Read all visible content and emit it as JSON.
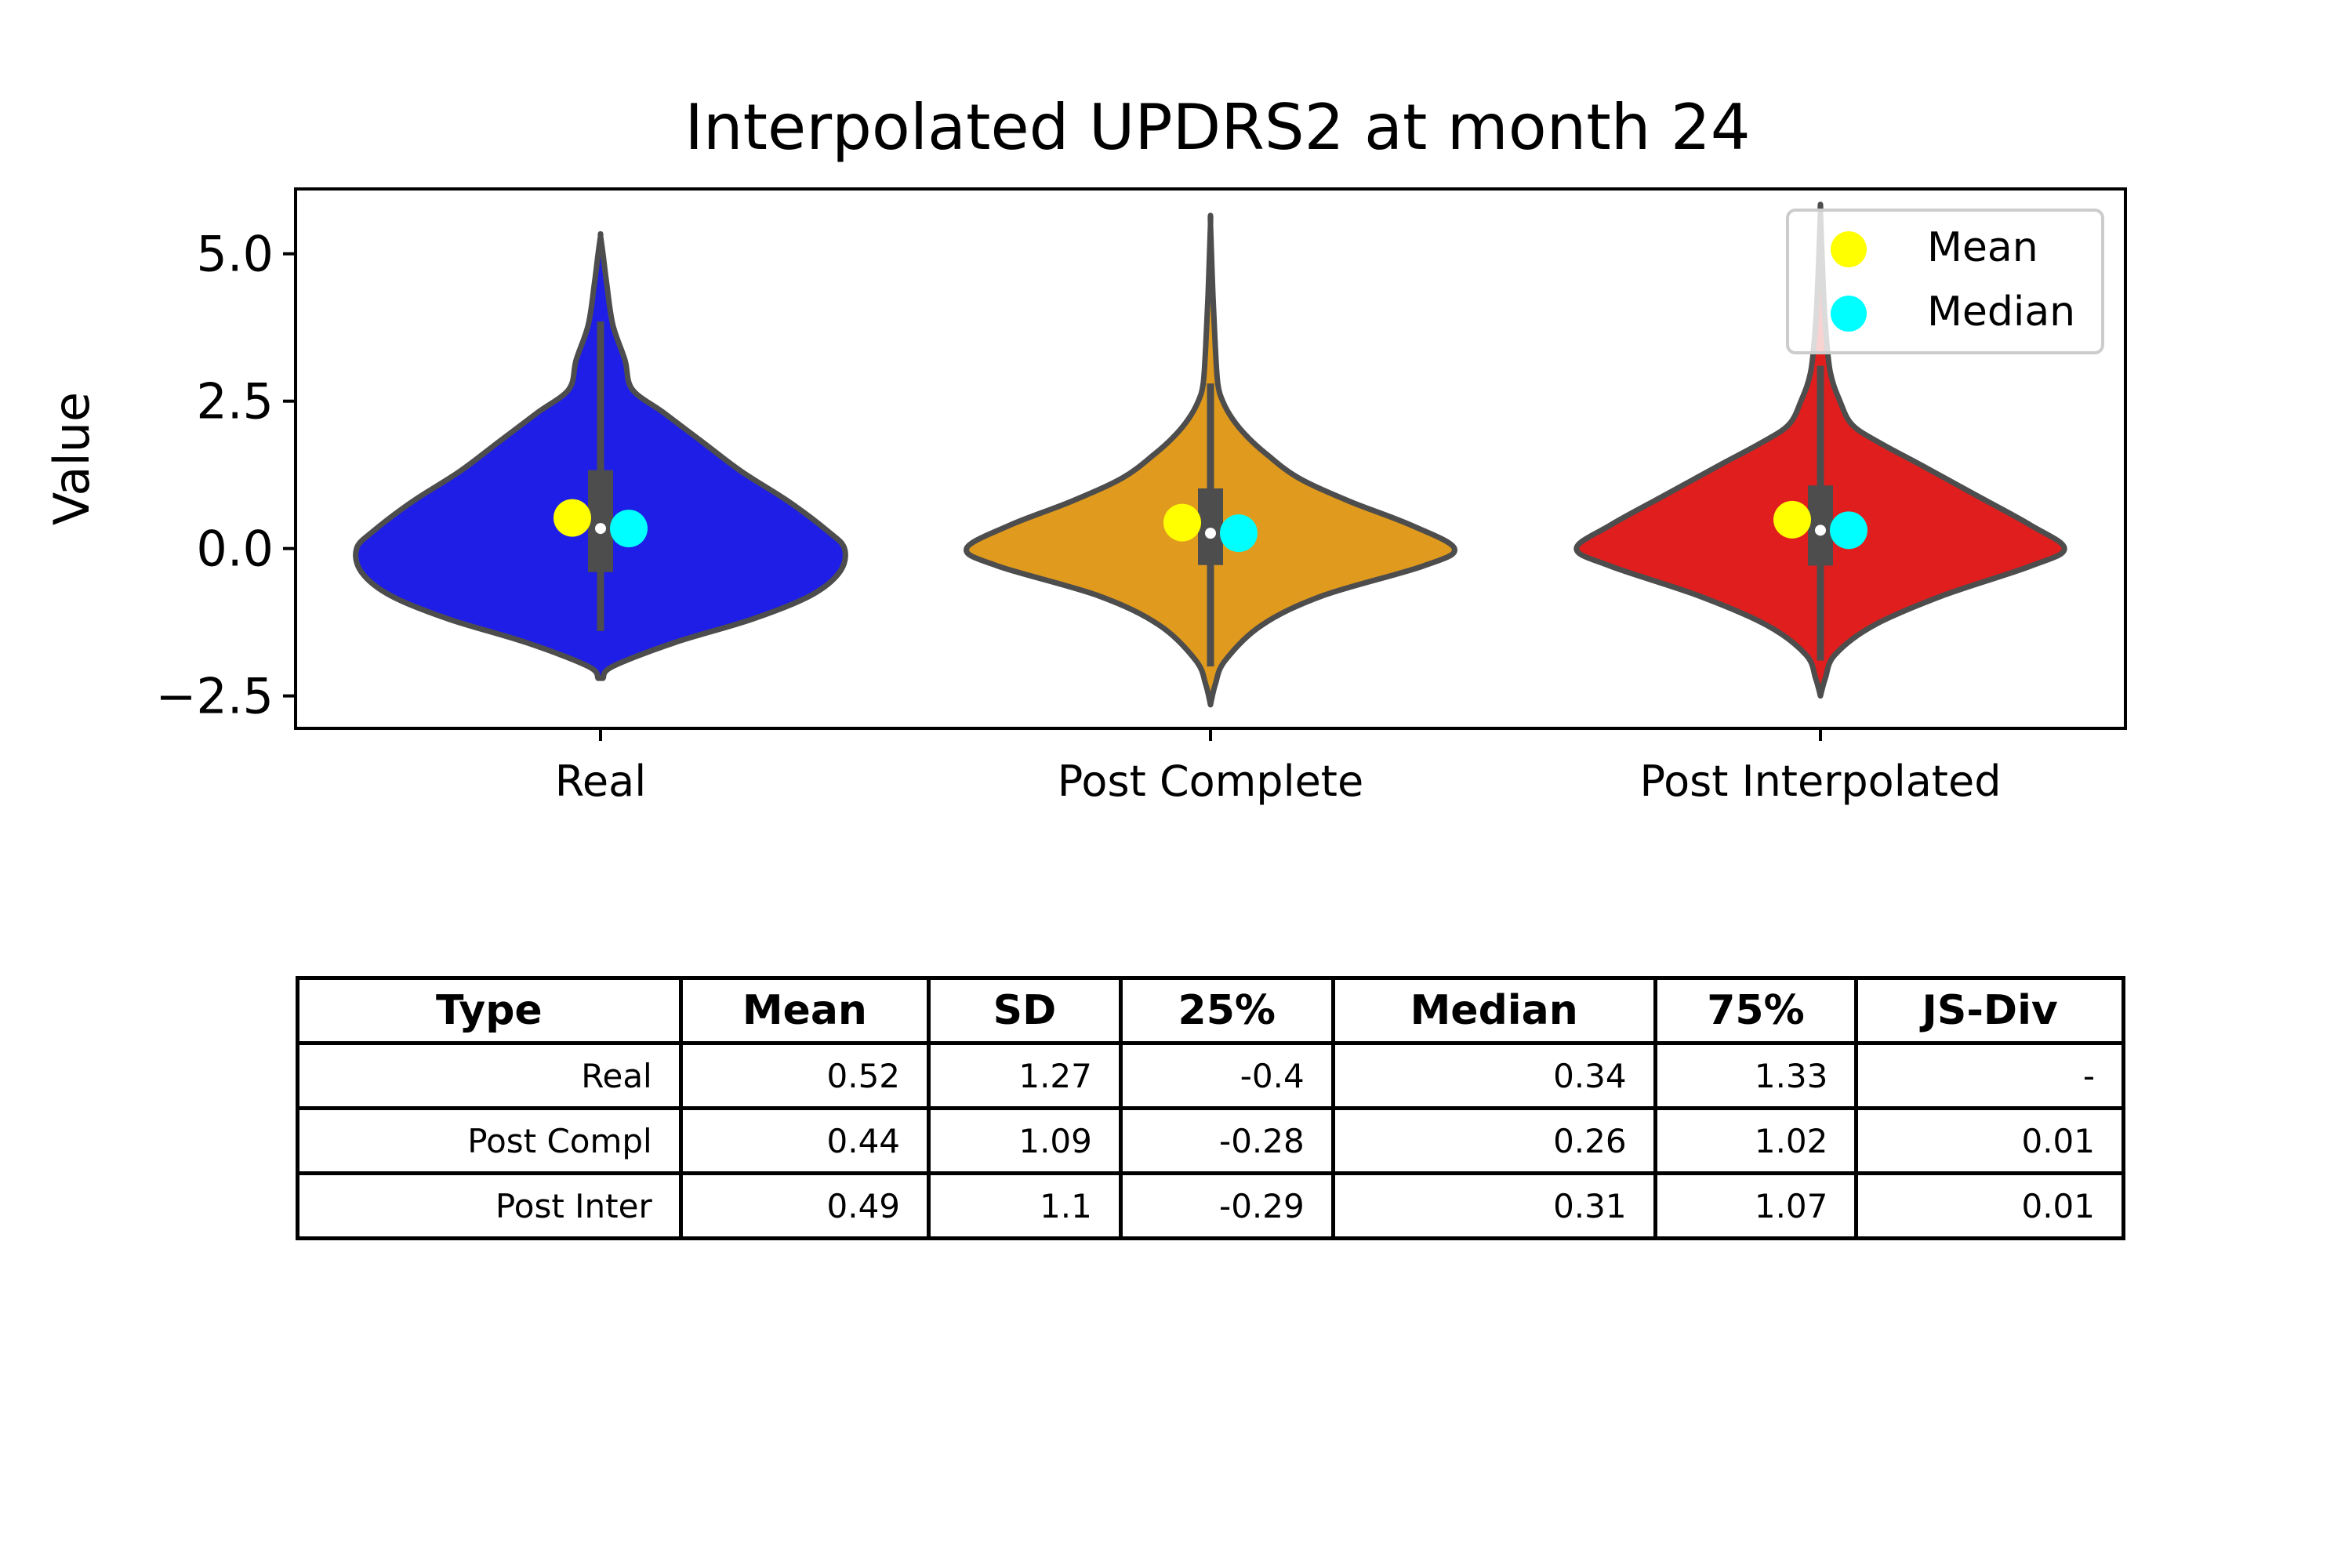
{
  "chart_data": {
    "type": "violin",
    "title": "Interpolated UPDRS2 at month 24",
    "ylabel": "Value",
    "xlabel": "",
    "ylim": [
      -3.05,
      6.1
    ],
    "yticks": [
      -2.5,
      0.0,
      2.5,
      5.0
    ],
    "ytick_labels": [
      "−2.5",
      "0.0",
      "2.5",
      "5.0"
    ],
    "categories": [
      "Real",
      "Post Complete",
      "Post Interpolated"
    ],
    "colors": [
      "#1e1ee6",
      "#e09a1e",
      "#e01e1e"
    ],
    "outline_color": "#4d4d4d",
    "series": [
      {
        "category": "Real",
        "mean": 0.52,
        "median": 0.34,
        "q1": -0.4,
        "q3": 1.33,
        "whisker_low": -1.4,
        "whisker_high": 3.85,
        "profile": [
          [
            -2.2,
            0.01
          ],
          [
            -2.0,
            0.05
          ],
          [
            -1.6,
            0.3
          ],
          [
            -1.2,
            0.62
          ],
          [
            -0.8,
            0.86
          ],
          [
            -0.4,
            0.98
          ],
          [
            0.0,
            1.0
          ],
          [
            0.3,
            0.93
          ],
          [
            0.8,
            0.77
          ],
          [
            1.3,
            0.58
          ],
          [
            1.8,
            0.42
          ],
          [
            2.3,
            0.26
          ],
          [
            2.7,
            0.13
          ],
          [
            3.2,
            0.1
          ],
          [
            3.8,
            0.05
          ],
          [
            4.5,
            0.025
          ],
          [
            5.0,
            0.01
          ],
          [
            5.3,
            0.0
          ]
        ]
      },
      {
        "category": "Post Complete",
        "mean": 0.44,
        "median": 0.26,
        "q1": -0.28,
        "q3": 1.02,
        "whisker_low": -2.0,
        "whisker_high": 2.8,
        "profile": [
          [
            -2.65,
            0.0
          ],
          [
            -2.3,
            0.02
          ],
          [
            -1.9,
            0.06
          ],
          [
            -1.3,
            0.21
          ],
          [
            -0.8,
            0.46
          ],
          [
            -0.3,
            0.87
          ],
          [
            0.0,
            1.0
          ],
          [
            0.4,
            0.82
          ],
          [
            0.8,
            0.57
          ],
          [
            1.2,
            0.36
          ],
          [
            1.6,
            0.23
          ],
          [
            1.9,
            0.15
          ],
          [
            2.2,
            0.09
          ],
          [
            2.5,
            0.05
          ],
          [
            2.8,
            0.03
          ],
          [
            3.4,
            0.02
          ],
          [
            4.3,
            0.01
          ],
          [
            5.5,
            0.0
          ]
        ]
      },
      {
        "category": "Post Interpolated",
        "mean": 0.49,
        "median": 0.31,
        "q1": -0.29,
        "q3": 1.07,
        "whisker_low": -1.9,
        "whisker_high": 3.1,
        "profile": [
          [
            -2.5,
            0.0
          ],
          [
            -2.2,
            0.02
          ],
          [
            -1.8,
            0.06
          ],
          [
            -1.3,
            0.22
          ],
          [
            -0.8,
            0.5
          ],
          [
            -0.3,
            0.86
          ],
          [
            0.0,
            1.0
          ],
          [
            0.4,
            0.86
          ],
          [
            0.9,
            0.64
          ],
          [
            1.4,
            0.42
          ],
          [
            1.8,
            0.24
          ],
          [
            2.1,
            0.13
          ],
          [
            2.5,
            0.08
          ],
          [
            3.0,
            0.04
          ],
          [
            3.8,
            0.02
          ],
          [
            4.6,
            0.01
          ],
          [
            5.7,
            0.0
          ]
        ]
      }
    ],
    "legend": {
      "placement": "top-right",
      "entries": [
        {
          "label": "Mean",
          "color": "#ffff00"
        },
        {
          "label": "Median",
          "color": "#00ffff"
        }
      ]
    },
    "grid": false
  },
  "table": {
    "headers": [
      "Type",
      "Mean",
      "SD",
      "25%",
      "Median",
      "75%",
      "JS-Div"
    ],
    "rows": [
      [
        "Real",
        "0.52",
        "1.27",
        "-0.4",
        "0.34",
        "1.33",
        "-"
      ],
      [
        "Post Compl",
        "0.44",
        "1.09",
        "-0.28",
        "0.26",
        "1.02",
        "0.01"
      ],
      [
        "Post Inter",
        "0.49",
        "1.1",
        "-0.29",
        "0.31",
        "1.07",
        "0.01"
      ]
    ]
  }
}
